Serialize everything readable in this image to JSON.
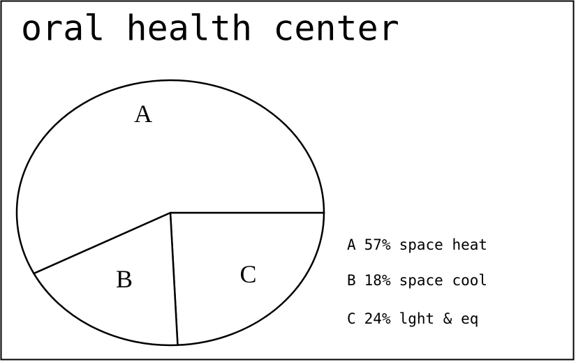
{
  "chart_data": {
    "type": "pie",
    "title": "oral health center",
    "categories": [
      "A",
      "B",
      "C"
    ],
    "labels": [
      "space heat",
      "space cool",
      "lght & eq"
    ],
    "values": [
      57,
      18,
      24
    ],
    "value_labels": [
      "57%",
      "18%",
      "24%"
    ],
    "color": "#ffffff"
  }
}
